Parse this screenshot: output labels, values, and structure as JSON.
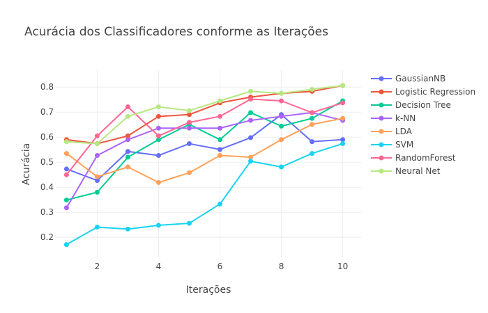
{
  "chart_data": {
    "type": "line",
    "title": "Acurácia dos Classificadores conforme as Iterações",
    "xlabel": "Iterações",
    "ylabel": "Acurácia",
    "xlim": [
      0.65,
      10.6
    ],
    "ylim": [
      0.12,
      0.87
    ],
    "xticks": [
      2,
      4,
      6,
      8,
      10
    ],
    "yticks": [
      0.2,
      0.3,
      0.4,
      0.5,
      0.6,
      0.7,
      0.8
    ],
    "grid": true,
    "legend_position": "right",
    "x": [
      1,
      2,
      3,
      4,
      5,
      6,
      7,
      8,
      9,
      10
    ],
    "series": [
      {
        "name": "GaussianNB",
        "color": "#636efa",
        "values": [
          0.473,
          0.427,
          0.543,
          0.527,
          0.574,
          0.551,
          0.598,
          0.69,
          0.582,
          0.59
        ]
      },
      {
        "name": "Logistic Regression",
        "color": "#ef553b",
        "values": [
          0.59,
          0.574,
          0.605,
          0.683,
          0.69,
          0.737,
          0.76,
          0.775,
          0.783,
          0.806
        ]
      },
      {
        "name": "Decision Tree",
        "color": "#00cc96",
        "values": [
          0.349,
          0.38,
          0.52,
          0.59,
          0.651,
          0.59,
          0.698,
          0.644,
          0.675,
          0.745
        ]
      },
      {
        "name": "k-NN",
        "color": "#ab63fa",
        "values": [
          0.318,
          0.527,
          0.59,
          0.636,
          0.636,
          0.636,
          0.667,
          0.683,
          0.698,
          0.667
        ]
      },
      {
        "name": "LDA",
        "color": "#ffa15a",
        "values": [
          0.535,
          0.442,
          0.481,
          0.419,
          0.458,
          0.527,
          0.52,
          0.59,
          0.651,
          0.675
        ]
      },
      {
        "name": "SVM",
        "color": "#19d3f3",
        "values": [
          0.171,
          0.241,
          0.233,
          0.248,
          0.256,
          0.333,
          0.504,
          0.481,
          0.535,
          0.574
        ]
      },
      {
        "name": "RandomForest",
        "color": "#ff6692",
        "values": [
          0.45,
          0.605,
          0.721,
          0.605,
          0.659,
          0.683,
          0.752,
          0.745,
          0.698,
          0.737
        ]
      },
      {
        "name": "Neural Net",
        "color": "#b6e880",
        "values": [
          0.582,
          0.574,
          0.683,
          0.721,
          0.706,
          0.745,
          0.783,
          0.775,
          0.791,
          0.806
        ]
      }
    ]
  }
}
